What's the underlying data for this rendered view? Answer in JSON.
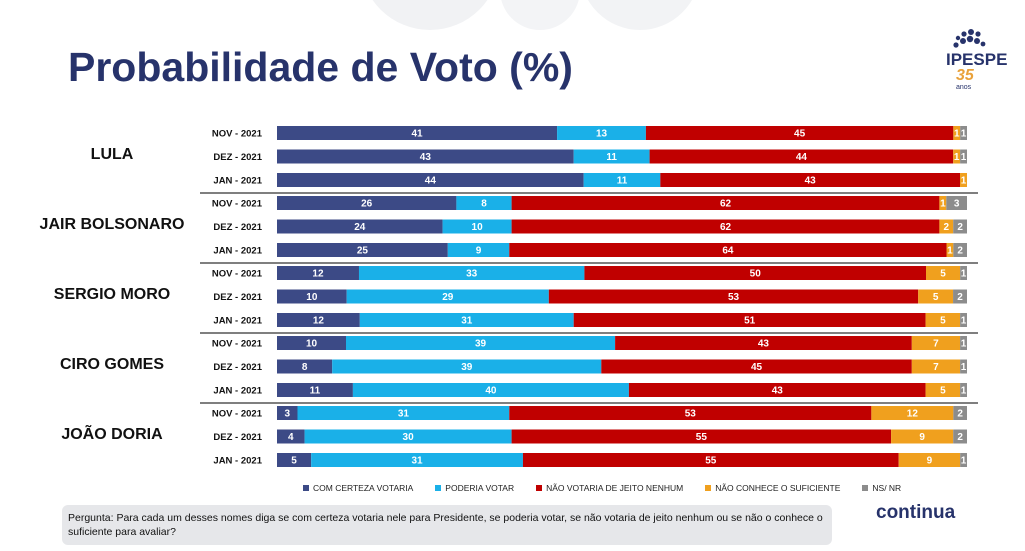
{
  "title": "Probabilidade de Voto (%)",
  "logo": {
    "text": "IPESPE",
    "number": "35",
    "sub": "anos"
  },
  "colors": {
    "certeza": "#3c4a86",
    "poderia": "#1ab0e8",
    "nao": "#c00000",
    "nao_conhece": "#f0a01e",
    "ns": "#8c8c8c"
  },
  "chart_data": {
    "type": "bar",
    "orientation": "horizontal-stacked",
    "title": "Probabilidade de Voto (%)",
    "series_names": [
      "COM CERTEZA VOTARIA",
      "PODERIA VOTAR",
      "NÃO VOTARIA DE JEITO NENHUM",
      "NÃO CONHECE O SUFICIENTE",
      "NS/ NR"
    ],
    "groups": [
      {
        "name": "LULA",
        "rows": [
          {
            "period": "NOV - 2021",
            "values": [
              41,
              13,
              45,
              1,
              1
            ]
          },
          {
            "period": "DEZ - 2021",
            "values": [
              43,
              11,
              44,
              1,
              1
            ]
          },
          {
            "period": "JAN - 2021",
            "values": [
              44,
              11,
              43,
              1,
              0
            ]
          }
        ]
      },
      {
        "name": "JAIR BOLSONARO",
        "rows": [
          {
            "period": "NOV - 2021",
            "values": [
              26,
              8,
              62,
              1,
              3
            ]
          },
          {
            "period": "DEZ - 2021",
            "values": [
              24,
              10,
              62,
              2,
              2
            ]
          },
          {
            "period": "JAN - 2021",
            "values": [
              25,
              9,
              64,
              1,
              2
            ]
          }
        ]
      },
      {
        "name": "SERGIO MORO",
        "rows": [
          {
            "period": "NOV - 2021",
            "values": [
              12,
              33,
              50,
              5,
              1
            ]
          },
          {
            "period": "DEZ - 2021",
            "values": [
              10,
              29,
              53,
              5,
              2
            ]
          },
          {
            "period": "JAN - 2021",
            "values": [
              12,
              31,
              51,
              5,
              1
            ]
          }
        ]
      },
      {
        "name": "CIRO GOMES",
        "rows": [
          {
            "period": "NOV - 2021",
            "values": [
              10,
              39,
              43,
              7,
              1
            ]
          },
          {
            "period": "DEZ - 2021",
            "values": [
              8,
              39,
              45,
              7,
              1
            ]
          },
          {
            "period": "JAN - 2021",
            "values": [
              11,
              40,
              43,
              5,
              1
            ]
          }
        ]
      },
      {
        "name": "JOÃO DORIA",
        "rows": [
          {
            "period": "NOV - 2021",
            "values": [
              3,
              31,
              53,
              12,
              2
            ]
          },
          {
            "period": "DEZ - 2021",
            "values": [
              4,
              30,
              55,
              9,
              2
            ]
          },
          {
            "period": "JAN - 2021",
            "values": [
              5,
              31,
              55,
              9,
              1
            ]
          }
        ]
      }
    ],
    "legend_position": "bottom",
    "grid": false
  },
  "footer": {
    "question": "Pergunta:  Para cada um desses nomes diga se com certeza votaria nele para Presidente, se poderia votar, se não votaria de jeito nenhum ou se não o conhece o suficiente para avaliar?",
    "continua": "continua"
  }
}
